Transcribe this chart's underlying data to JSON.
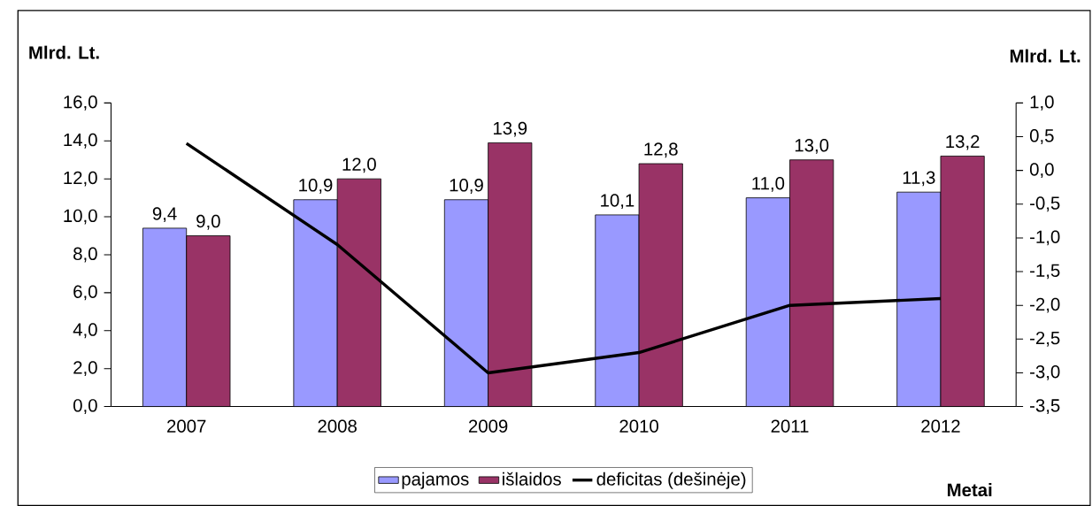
{
  "chart_data": {
    "type": "bar",
    "xlabel": "Metai",
    "ylabel": "Mlrd. Lt.",
    "y2label": "Mlrd. Lt.",
    "categories": [
      "2007",
      "2008",
      "2009",
      "2010",
      "2011",
      "2012"
    ],
    "series": [
      {
        "name": "pajamos",
        "color": "#9999ff",
        "values": [
          9.4,
          10.9,
          10.9,
          10.1,
          11.0,
          11.3
        ],
        "value_labels": [
          "9,4",
          "10,9",
          "10,9",
          "10,1",
          "11,0",
          "11,3"
        ]
      },
      {
        "name": "išlaidos",
        "color": "#993366",
        "values": [
          9.0,
          12.0,
          13.9,
          12.8,
          13.0,
          13.2
        ],
        "value_labels": [
          "9,0",
          "12,0",
          "13,9",
          "12,8",
          "13,0",
          "13,2"
        ]
      },
      {
        "name": "deficitas (dešinėje)",
        "type": "line",
        "axis": "y2",
        "color": "#000000",
        "marker": "none",
        "line_style": "solid",
        "values": [
          0.4,
          -1.1,
          -3.0,
          -2.7,
          -2.0,
          -1.9
        ]
      }
    ],
    "ylim": [
      0,
      16
    ],
    "yticks": [
      {
        "value": 0,
        "label": "0,0"
      },
      {
        "value": 2,
        "label": "2,0"
      },
      {
        "value": 4,
        "label": "4,0"
      },
      {
        "value": 6,
        "label": "6,0"
      },
      {
        "value": 8,
        "label": "8,0"
      },
      {
        "value": 10,
        "label": "10,0"
      },
      {
        "value": 12,
        "label": "12,0"
      },
      {
        "value": 14,
        "label": "14,0"
      },
      {
        "value": 16,
        "label": "16,0"
      }
    ],
    "y2lim": [
      -3.5,
      1.0
    ],
    "y2ticks": [
      {
        "value": -3.5,
        "label": "-3,5"
      },
      {
        "value": -3.0,
        "label": "-3,0"
      },
      {
        "value": -2.5,
        "label": "-2,5"
      },
      {
        "value": -2.0,
        "label": "-2,0"
      },
      {
        "value": -1.5,
        "label": "-1,5"
      },
      {
        "value": -1.0,
        "label": "-1,0"
      },
      {
        "value": -0.5,
        "label": "-0,5"
      },
      {
        "value": 0.0,
        "label": "0,0"
      },
      {
        "value": 0.5,
        "label": "0,5"
      },
      {
        "value": 1.0,
        "label": "1,0"
      }
    ],
    "legend": "bottom"
  }
}
